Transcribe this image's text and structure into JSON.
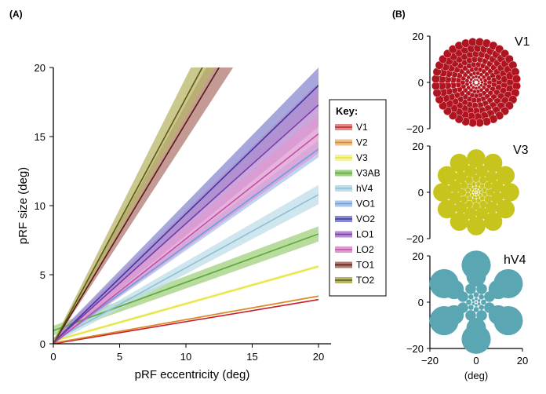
{
  "panel_labels": {
    "a": "(A)",
    "b": "(B)"
  },
  "chart_data": [
    {
      "type": "line",
      "xlabel": "pRF eccentricity (deg)",
      "ylabel": "pRF size (deg)",
      "xlim": [
        0,
        20
      ],
      "ylim": [
        0,
        20
      ],
      "xticks": [
        "0",
        "5",
        "10",
        "15",
        "20"
      ],
      "yticks": [
        "0",
        "5",
        "10",
        "15",
        "20"
      ],
      "grid": false,
      "legend": {
        "title": "Key:",
        "placement": "right"
      },
      "series": [
        {
          "name": "V1",
          "color": "#c8202a",
          "band": "#e08a8a",
          "intercept": 0.0,
          "slope": 0.16,
          "ci": [
            0.0,
            0.05
          ]
        },
        {
          "name": "V2",
          "color": "#d98a2a",
          "band": "#eec08a",
          "intercept": 0.05,
          "slope": 0.17,
          "ci": [
            0.05,
            0.06
          ]
        },
        {
          "name": "V3",
          "color": "#e3e33a",
          "band": "#f3f3a0",
          "intercept": 0.2,
          "slope": 0.27,
          "ci": [
            0.1,
            0.12
          ]
        },
        {
          "name": "V3AB",
          "color": "#5aa83a",
          "band": "#9fd07e",
          "intercept": 0.95,
          "slope": 0.35,
          "ci": [
            0.35,
            0.55
          ]
        },
        {
          "name": "hV4",
          "color": "#8ec0d4",
          "band": "#bfdde9",
          "intercept": 0.2,
          "slope": 0.53,
          "ci": [
            0.2,
            0.7
          ]
        },
        {
          "name": "VO1",
          "color": "#6a9de0",
          "band": "#a9c6ee",
          "intercept": 0.1,
          "slope": 0.7,
          "ci": [
            0.2,
            0.6
          ]
        },
        {
          "name": "VO2",
          "color": "#3a3aa0",
          "band": "#8a8ad0",
          "intercept": 0.1,
          "slope": 0.93,
          "ci": [
            0.3,
            1.3
          ]
        },
        {
          "name": "LO1",
          "color": "#7a3aa8",
          "band": "#b58ad0",
          "intercept": 0.1,
          "slope": 0.86,
          "ci": [
            0.3,
            1.6
          ]
        },
        {
          "name": "LO2",
          "color": "#c050a8",
          "band": "#df9ad0",
          "intercept": 0.0,
          "slope": 0.76,
          "ci": [
            0.3,
            1.4
          ]
        },
        {
          "name": "TO1",
          "color": "#5a1a14",
          "band": "#b07a70",
          "intercept": 0.0,
          "slope": 1.6,
          "ci": [
            0.2,
            2.5
          ]
        },
        {
          "name": "TO2",
          "color": "#5a5a10",
          "band": "#b8b46a",
          "intercept": 0.0,
          "slope": 1.78,
          "ci": [
            0.2,
            2.8
          ]
        }
      ]
    },
    {
      "type": "scatter",
      "title": "V1",
      "xlim": [
        -20,
        20
      ],
      "ylim": [
        -20,
        20
      ],
      "yticks": [
        "20",
        "0",
        "−20"
      ],
      "color": "#b01420",
      "description_of_marks": "pRF disks tiling the visual field, small at center, larger toward periphery"
    },
    {
      "type": "scatter",
      "title": "V3",
      "xlim": [
        -20,
        20
      ],
      "ylim": [
        -20,
        20
      ],
      "yticks": [
        "20",
        "0",
        "−20"
      ],
      "color": "#c8c41e"
    },
    {
      "type": "scatter",
      "title": "hV4",
      "xlim": [
        -20,
        20
      ],
      "ylim": [
        -20,
        20
      ],
      "xticks": [
        "−20",
        "0",
        "20"
      ],
      "yticks": [
        "20",
        "0",
        "−20"
      ],
      "xlabel": "(deg)",
      "color": "#5aa6b2"
    }
  ]
}
